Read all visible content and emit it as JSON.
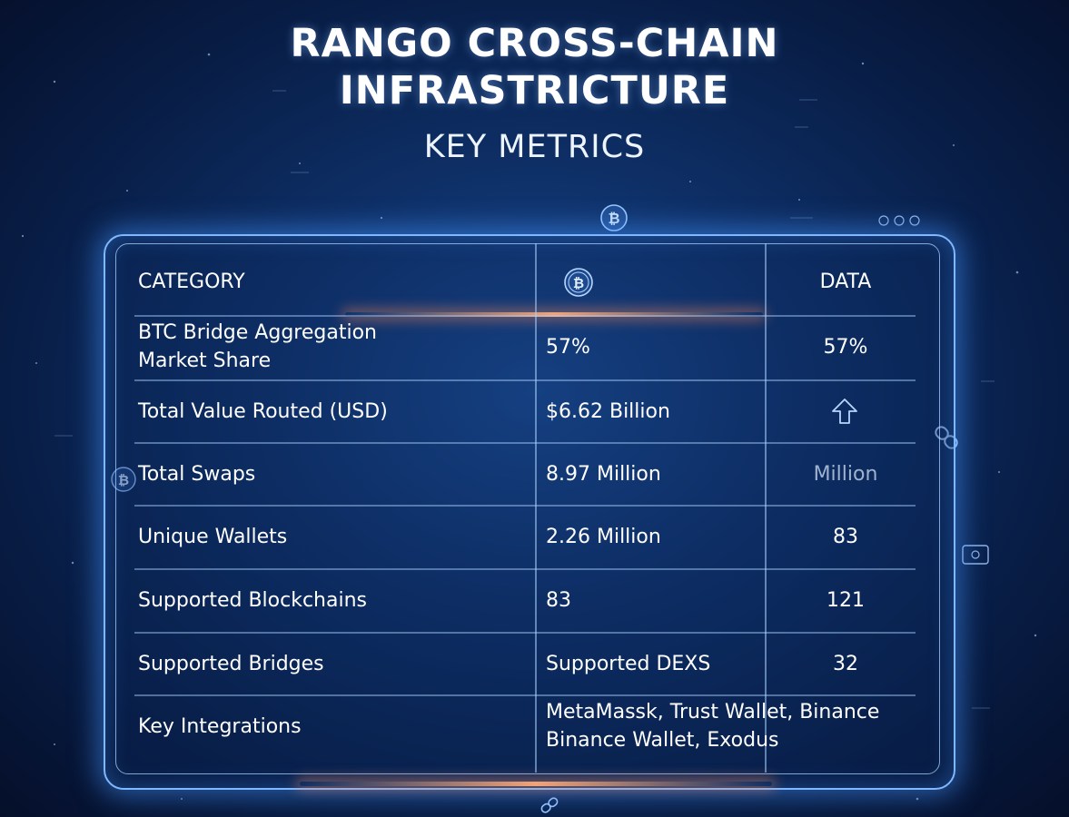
{
  "title": {
    "line1": "RANGO CROSS-CHAIN",
    "line2": "INFRASTRICTURE"
  },
  "subtitle": "KEY METRICS",
  "table": {
    "headers": {
      "category": "CATEGORY",
      "middle_icon": "bitcoin-icon",
      "data": "DATA"
    },
    "rows": [
      {
        "category": "BTC Bridge Aggregation Market Share",
        "value": "57%",
        "data": "57%"
      },
      {
        "category": "Total Value Routed (USD)",
        "value": "$6.62 Billion",
        "data_icon": "up-arrow-icon"
      },
      {
        "category": "Total Swaps",
        "value": "8.97 Million",
        "data": "Million"
      },
      {
        "category": "Unique Wallets",
        "value": "2.26 Million",
        "data": "83"
      },
      {
        "category": "Supported Blockchains",
        "value": "83",
        "data": "121"
      },
      {
        "category": "Supported Bridges",
        "value": "Supported DEXS",
        "data": "32"
      },
      {
        "category": "Key Integrations",
        "value": "MetaMassk, Trust Wallet, Binance Binance Wallet, Exodus"
      }
    ]
  },
  "decor": {
    "top_icon": "bitcoin-icon",
    "left_icon": "bitcoin-icon",
    "right_icon": "chain-link-icon",
    "bottom_icon": "chain-link-icon",
    "accent_color": "#7fb8ff",
    "flare_color": "#ffaa78"
  }
}
